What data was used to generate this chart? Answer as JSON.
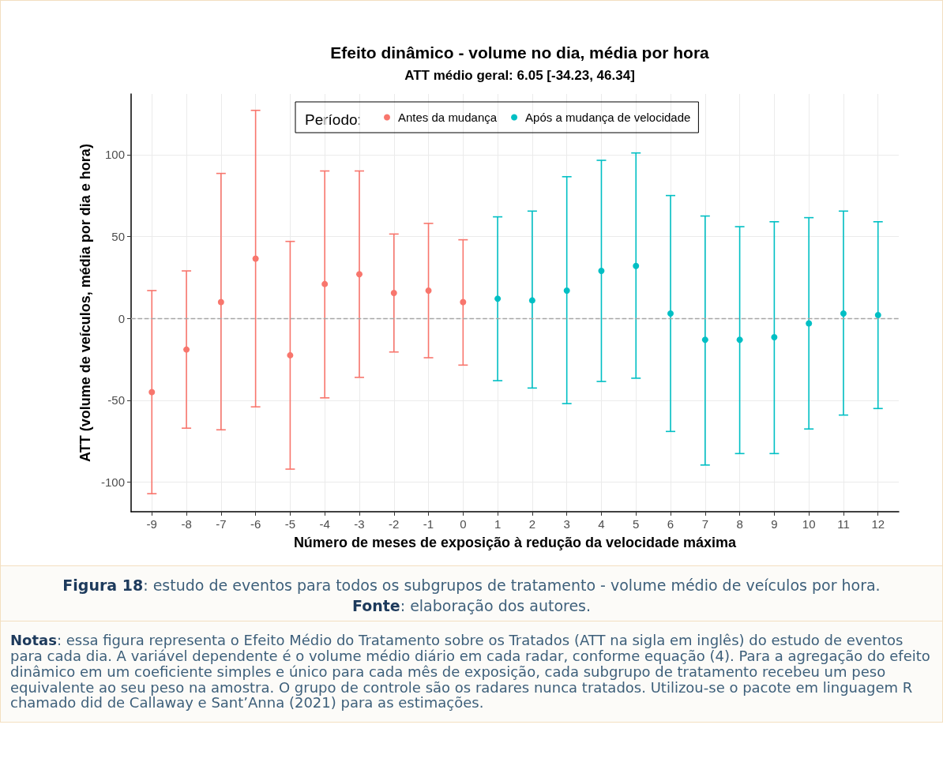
{
  "chart_data": {
    "type": "scatter",
    "title": "Efeito dinâmico - volume no dia, média por hora",
    "subtitle": "ATT médio geral: 6.05 [-34.23, 46.34]",
    "xlabel": "Número de meses de exposição à redução da velocidade máxima",
    "ylabel": "ATT (volume de veículos, média por dia e hora)",
    "legend_title": "Período:",
    "series": [
      {
        "name": "Antes da mudança",
        "color": "#f8766d",
        "x": [
          -9,
          -8,
          -7,
          -6,
          -5,
          -4,
          -3,
          -2,
          -1,
          0
        ],
        "values": [
          -45,
          -19,
          10,
          36.5,
          -22.5,
          21,
          27,
          15.5,
          17,
          10
        ],
        "errors": [
          [
            -107,
            17
          ],
          [
            -67,
            29
          ],
          [
            -68,
            88.5
          ],
          [
            -54,
            127
          ],
          [
            -92,
            47
          ],
          [
            -48.5,
            90
          ],
          [
            -36,
            90
          ],
          [
            -20.5,
            51.5
          ],
          [
            -24,
            58
          ],
          [
            -28.5,
            48
          ]
        ]
      },
      {
        "name": "Após a mudança de velocidade",
        "color": "#00bfc4",
        "x": [
          1,
          2,
          3,
          4,
          5,
          6,
          7,
          8,
          9,
          10,
          11,
          12
        ],
        "values": [
          12,
          11,
          17,
          29,
          32,
          3,
          -13,
          -13,
          -11.5,
          -3,
          3,
          2
        ],
        "errors": [
          [
            -38,
            62
          ],
          [
            -42.5,
            65.5
          ],
          [
            -52,
            86.5
          ],
          [
            -38.5,
            96.5
          ],
          [
            -36.5,
            101
          ],
          [
            -69,
            75
          ],
          [
            -89.5,
            62.5
          ],
          [
            -82.5,
            56
          ],
          [
            -82.5,
            59
          ],
          [
            -67.5,
            61.5
          ],
          [
            -59,
            65.5
          ],
          [
            -55,
            59
          ]
        ]
      }
    ],
    "xlim": [
      -9.6,
      12.6
    ],
    "xticks": [
      -9,
      -8,
      -7,
      -6,
      -5,
      -4,
      -3,
      -2,
      -1,
      0,
      1,
      2,
      3,
      4,
      5,
      6,
      7,
      8,
      9,
      10,
      11,
      12
    ],
    "ylim": [
      -118,
      137
    ],
    "yticks": [
      -100,
      -50,
      0,
      50,
      100
    ],
    "ref_lines": [
      {
        "axis": "y",
        "value": 0,
        "label": null,
        "color": "#a6a6a6",
        "line_style": "dashed"
      }
    ],
    "grid": true,
    "legend": "top",
    "marker": "circle",
    "annotations": [
      "Figura 18: estudo de eventos para todos os subgrupos de tratamento - volume médio de veículos por hora.",
      "Fonte: elaboração dos autores.",
      "Notas: essa figura representa o Efeito Médio do Tratamento sobre os Tratados (ATT na sigla em inglês) do estudo de eventos para cada dia. A variável dependente é o volume médio diário em cada radar, conforme equação (4). Para a agregação do efeito dinâmico em um coeficiente simples e único para cada mês de exposição, cada subgrupo de tratamento recebeu um peso equivalente ao seu peso na amostra. O grupo de controle são os radares nunca tratados. Utilizou-se o pacote em linguagem R chamado did de Callaway e Sant’Anna (2021) para as estimações."
    ]
  }
}
